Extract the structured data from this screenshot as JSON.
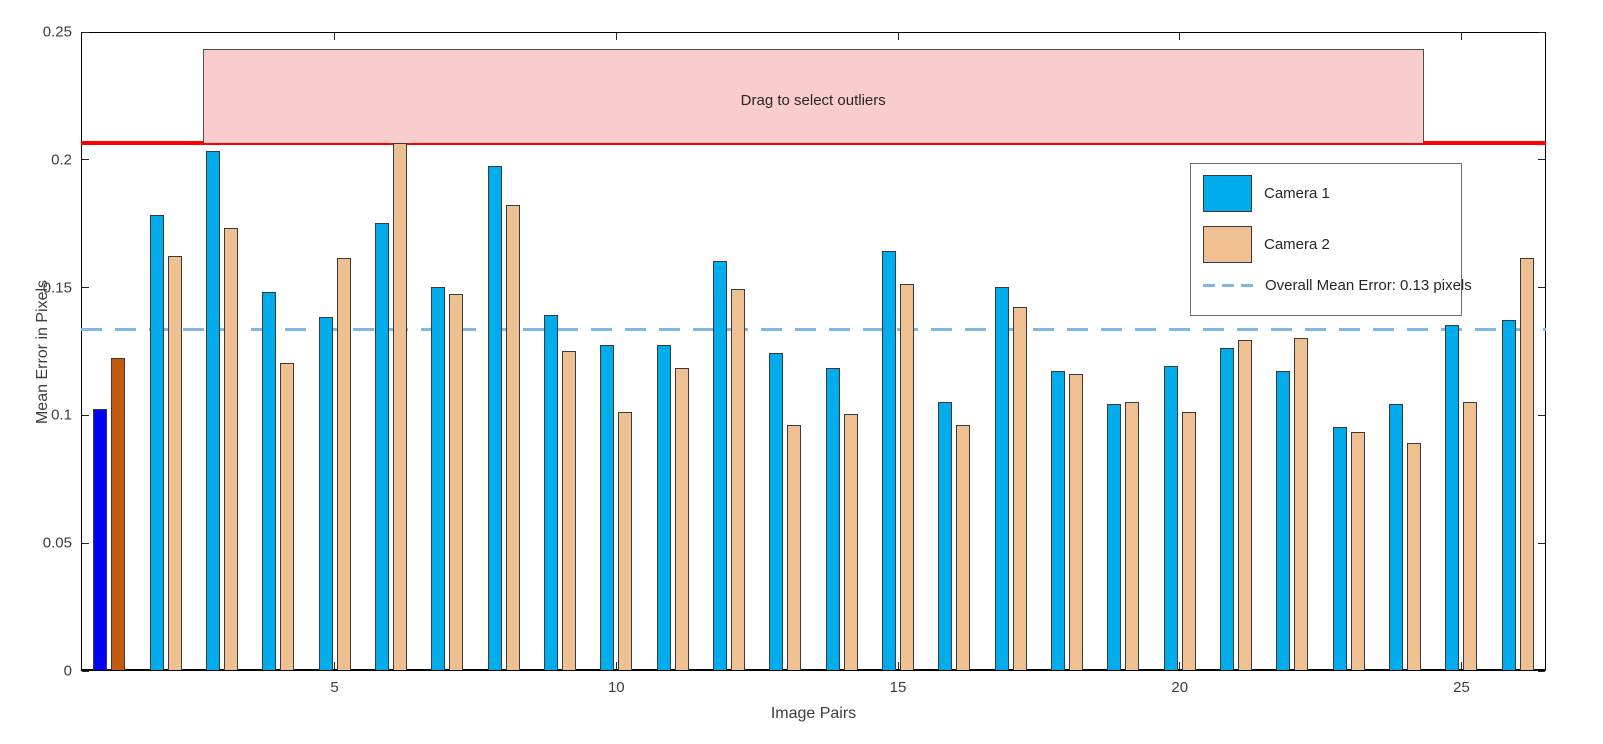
{
  "chart_data": {
    "type": "bar",
    "title": "",
    "xlabel": "Image Pairs",
    "ylabel": "Mean Error in Pixels",
    "ylim": [
      0,
      0.25
    ],
    "ytick_values": [
      0,
      0.05,
      0.1,
      0.15,
      0.2,
      0.25
    ],
    "ytick_labels": [
      "0",
      "0.05",
      "0.1",
      "0.15",
      "0.2",
      "0.25"
    ],
    "xtick_values": [
      5,
      10,
      15,
      20,
      25
    ],
    "xtick_labels": [
      "5",
      "10",
      "15",
      "20",
      "25"
    ],
    "categories": [
      1,
      2,
      3,
      4,
      5,
      6,
      7,
      8,
      9,
      10,
      11,
      12,
      13,
      14,
      15,
      16,
      17,
      18,
      19,
      20,
      21,
      22,
      23,
      24,
      25,
      26
    ],
    "series": [
      {
        "name": "Camera 1",
        "color": "#00ACEC",
        "selected_color": "#0202F2",
        "values": [
          0.102,
          0.178,
          0.203,
          0.148,
          0.138,
          0.175,
          0.15,
          0.197,
          0.139,
          0.127,
          0.127,
          0.16,
          0.124,
          0.118,
          0.164,
          0.105,
          0.15,
          0.117,
          0.104,
          0.119,
          0.126,
          0.117,
          0.095,
          0.104,
          0.135,
          0.137
        ]
      },
      {
        "name": "Camera 2",
        "color": "#EFC192",
        "selected_color": "#C25A10",
        "values": [
          0.122,
          0.162,
          0.173,
          0.12,
          0.161,
          0.206,
          0.147,
          0.182,
          0.125,
          0.101,
          0.118,
          0.149,
          0.096,
          0.1,
          0.151,
          0.096,
          0.142,
          0.116,
          0.105,
          0.101,
          0.129,
          0.13,
          0.093,
          0.089,
          0.105,
          0.161
        ]
      }
    ],
    "selected_pairs": [
      1
    ],
    "mean_line": {
      "value": 0.1336,
      "label": "Overall Mean Error: 0.13 pixels",
      "color": "#7FB9E3"
    },
    "threshold_line": {
      "value": 0.2067,
      "color": "#FF0000"
    },
    "overlay": {
      "label": "Drag to select outliers",
      "x_range_pairs": [
        2.66,
        24.33
      ],
      "top_value": 0.2435,
      "fill": "#FACDCD",
      "border": "#4D4D4D"
    },
    "legend_position": "upper right",
    "grid": false
  }
}
